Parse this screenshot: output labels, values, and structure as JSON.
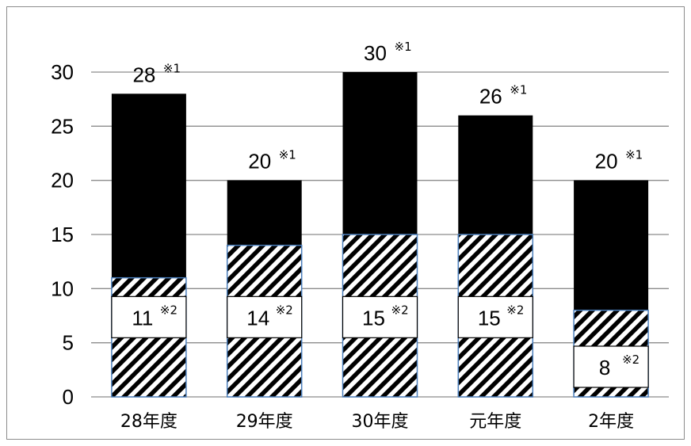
{
  "chart_data": {
    "type": "bar",
    "stacked": true,
    "categories": [
      "28年度",
      "29年度",
      "30年度",
      "元年度",
      "2年度"
    ],
    "ylim": [
      0,
      30
    ],
    "yticks": [
      "0",
      "5",
      "10",
      "15",
      "20",
      "25",
      "30"
    ],
    "grid": true,
    "series": [
      {
        "values": [
          11,
          14,
          15,
          15,
          8
        ],
        "fill": "hatched",
        "note": "※2"
      },
      {
        "values": [
          17,
          6,
          15,
          11,
          12
        ],
        "fill": "solid",
        "note": ""
      }
    ],
    "totals": [
      28,
      20,
      30,
      26,
      20
    ],
    "total_labels": [
      "28",
      "20",
      "30",
      "26",
      "20"
    ],
    "total_note": "※1",
    "part_labels": [
      "11",
      "14",
      "15",
      "15",
      "8"
    ],
    "part_note": "※2",
    "colors": {
      "solid": "#000000",
      "hatch": "#000000",
      "hatch_bg": "#ffffff",
      "grid": "#8c8c8c",
      "outline": "#4a7ebb"
    }
  }
}
